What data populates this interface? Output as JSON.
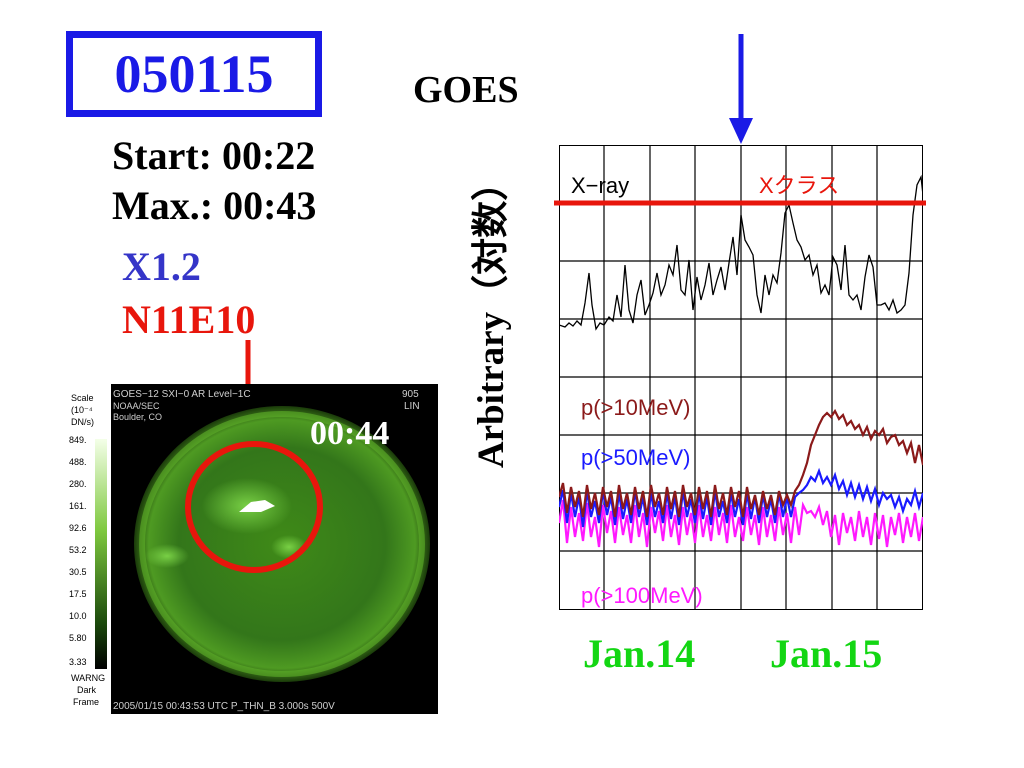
{
  "event": {
    "id": "050115",
    "start": "Start: 00:22",
    "max": "Max.: 00:43",
    "flare_class": "X1.2",
    "location": "N11E10"
  },
  "colors": {
    "event_box": "#1a1ae6",
    "flare_class": "#3535c8",
    "location": "#e8160c",
    "red_marker": "#e8160c",
    "dates": "#13d613",
    "proton_10": "#8b1a1a",
    "proton_50": "#1a1aff",
    "proton_100": "#ff19ff",
    "sxi_background": "#000000",
    "sxi_disk": "#4a9a1c"
  },
  "goes_plot": {
    "heading": "GOES",
    "y_axis_label": "Arbitrary（対数）",
    "xray_label": "X−ray",
    "xclass_label": "Xクラス",
    "p10_label": "p(>10MeV)",
    "p50_label": "p(>50MeV)",
    "p100_label": "p(>100MeV)",
    "dates": [
      "Jan.14",
      "Jan.15"
    ]
  },
  "sxi_image": {
    "time_overlay": "00:44",
    "header_left": "GOES−12   SXI−0  AR    Level−1C",
    "header_right": "905",
    "header_right2": "LIN",
    "org_line1": "NOAA/SEC",
    "org_line2": "Boulder, CO",
    "scale_label": [
      "Scale",
      "(10⁻⁴",
      "DN/s)"
    ],
    "scale_values": [
      "849.",
      "488.",
      "280.",
      "161.",
      "92.6",
      "53.2",
      "30.5",
      "17.5",
      "10.0",
      "5.80",
      "3.33"
    ],
    "warning": [
      "WARNG",
      "Dark",
      "Frame"
    ],
    "footer": "2005/01/15 00:43:53 UTC   P_THN_B   3.000s   500V"
  }
}
